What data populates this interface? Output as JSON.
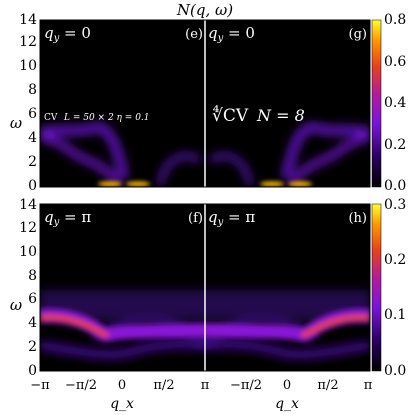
{
  "figure": {
    "title": "N(q, ω)",
    "y_axis_label": "ω",
    "x_axis_label": "q_x"
  },
  "chart_data": [
    {
      "type": "heatmap",
      "panel": "e",
      "annotation": "q_y = 0",
      "note": "CV   L = 50 × 2   η = 0.1",
      "x_range": [
        -3.14159,
        0
      ],
      "ylim": [
        0,
        14
      ],
      "y_ticks": [
        "0",
        "2",
        "4",
        "6",
        "8",
        "10",
        "12",
        "14"
      ],
      "colorbar": {
        "ticks": [
          "0.0",
          "0.2",
          "0.4",
          "0.6",
          "0.8"
        ],
        "range": [
          0,
          0.8
        ]
      },
      "branches": [
        {
          "name": "lower",
          "peaks": [
            {
              "q": -3.14,
              "w": 4.6
            },
            {
              "q": -1.57,
              "w": 2.6
            },
            {
              "q": -0.5,
              "w": 0.4
            }
          ]
        },
        {
          "name": "upper",
          "peaks": [
            {
              "q": -3.14,
              "w": 4.4
            },
            {
              "q": -1.57,
              "w": 5.0
            },
            {
              "q": -0.5,
              "w": 1.2
            }
          ]
        }
      ],
      "hotspot": {
        "q": -0.45,
        "w": 0.25,
        "value": 0.8
      }
    },
    {
      "type": "heatmap",
      "panel": "g",
      "annotation": "q_y = 0",
      "note": "∜CV  N = 8",
      "x_range": [
        0,
        3.14159
      ],
      "ylim": [
        0,
        14
      ],
      "hotspot": {
        "q": 0.45,
        "w": 0.25,
        "value": 0.8
      }
    },
    {
      "type": "heatmap",
      "panel": "f",
      "annotation": "q_y = π",
      "x_range": [
        -3.14159,
        0
      ],
      "ylim": [
        0,
        14
      ],
      "y_ticks": [
        "0",
        "2",
        "4",
        "6",
        "8",
        "10",
        "12",
        "14"
      ],
      "x_ticks": [
        "−π",
        "−π/2",
        "0",
        "π/2",
        "π"
      ],
      "colorbar": {
        "ticks": [
          "0.0",
          "0.1",
          "0.2",
          "0.3"
        ],
        "range": [
          0,
          0.3
        ]
      },
      "bands": [
        {
          "name": "main",
          "points": [
            {
              "q": -3.14,
              "w": 4.7
            },
            {
              "q": -1.9,
              "w": 3.4
            },
            {
              "q": -1.3,
              "w": 3.1
            },
            {
              "q": 0,
              "w": 2.3
            }
          ]
        },
        {
          "name": "lower",
          "points": [
            {
              "q": -3.14,
              "w": 2.0
            },
            {
              "q": -1.3,
              "w": 1.2
            },
            {
              "q": 0,
              "w": 2.0
            }
          ]
        }
      ]
    },
    {
      "type": "heatmap",
      "panel": "h",
      "annotation": "q_y = π",
      "x_range": [
        0,
        3.14159
      ],
      "ylim": [
        0,
        14
      ],
      "x_ticks": [
        "−π/2",
        "0",
        "π/2",
        "π"
      ]
    }
  ],
  "panels": {
    "e": {
      "label": "(e)",
      "qy": "q",
      "qy_sub": "y",
      "qy_val": " = 0"
    },
    "g": {
      "label": "(g)",
      "qy": "q",
      "qy_sub": "y",
      "qy_val": " = 0"
    },
    "f": {
      "label": "(f)",
      "qy": "q",
      "qy_sub": "y",
      "qy_val": " = π"
    },
    "h": {
      "label": "(h)",
      "qy": "q",
      "qy_sub": "y",
      "qy_val": " = π"
    }
  },
  "notes": {
    "cv": "CV",
    "cv_params": "L = 50 × 2   η = 0.1",
    "root": "∜CV",
    "n8": "N = 8"
  },
  "ticks": {
    "y_left": [
      "0",
      "2",
      "4",
      "6",
      "8",
      "10",
      "12",
      "14"
    ],
    "x_left": [
      "−π",
      "−π/2",
      "0",
      "π/2"
    ],
    "x_right": [
      "π",
      "−π/2",
      "0",
      "π/2",
      "π"
    ],
    "cb_top": [
      "0.0",
      "0.2",
      "0.4",
      "0.6",
      "0.8"
    ],
    "cb_bot": [
      "0.0",
      "0.1",
      "0.2",
      "0.3"
    ]
  },
  "colors": {
    "background": "#000000",
    "low": "#140034",
    "mid": "#6a12cc",
    "high": "#e0401c",
    "peak": "#ffd800",
    "divider": "#ffffff"
  }
}
